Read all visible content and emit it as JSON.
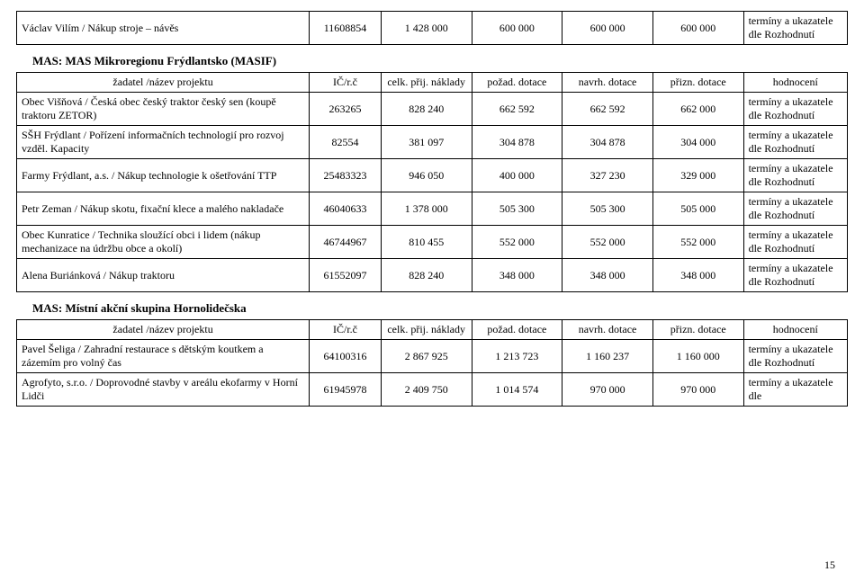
{
  "columns": {
    "ic": "IČ/r.č",
    "celk": "celk. přij. náklady",
    "pozad": "požad. dotace",
    "navrh": "navrh. dotace",
    "prizn": "přizn. dotace",
    "hodn": "hodnocení",
    "zadatel": "žadatel /název projektu"
  },
  "ukaz_full": "termíny a ukazatele dle Rozhodnutí",
  "ukaz_short": "termíny a ukazatele dle",
  "top_row": {
    "name": "Václav Vilím  / Nákup stroje – návěs",
    "ic": "11608854",
    "c1": "1 428 000",
    "c2": "600 000",
    "c3": "600 000",
    "c4": "600 000"
  },
  "section1": {
    "title": "MAS: MAS Mikroregionu Frýdlantsko (MASIF)",
    "rows": [
      {
        "name": "Obec Višňová / Česká obec český traktor český sen (koupě traktoru ZETOR)",
        "ic": "263265",
        "c1": "828 240",
        "c2": "662 592",
        "c3": "662 592",
        "c4": "662 000"
      },
      {
        "name": "SŠH Frýdlant / Pořízení informačních technologií pro rozvoj vzděl. Kapacity",
        "ic": "82554",
        "c1": "381 097",
        "c2": "304 878",
        "c3": "304 878",
        "c4": "304 000"
      },
      {
        "name": "Farmy Frýdlant, a.s. / Nákup technologie k ošetřování TTP",
        "ic": "25483323",
        "c1": "946 050",
        "c2": "400 000",
        "c3": "327 230",
        "c4": "329 000"
      },
      {
        "name": "Petr Zeman / Nákup skotu, fixační klece a malého nakladače",
        "ic": "46040633",
        "c1": "1 378 000",
        "c2": "505 300",
        "c3": "505 300",
        "c4": "505 000"
      },
      {
        "name": "Obec Kunratice / Technika sloužící obci i lidem (nákup mechanizace na údržbu obce a okolí)",
        "ic": "46744967",
        "c1": "810 455",
        "c2": "552 000",
        "c3": "552 000",
        "c4": "552 000"
      },
      {
        "name": "Alena Buriánková / Nákup traktoru",
        "ic": "61552097",
        "c1": "828 240",
        "c2": "348 000",
        "c3": "348 000",
        "c4": "348 000"
      }
    ]
  },
  "section2": {
    "title": "MAS: Místní akční skupina Hornolidečska",
    "rows": [
      {
        "name": "Pavel Šeliga / Zahradní restaurace s dětským koutkem a zázemím pro volný čas",
        "ic": "64100316",
        "c1": "2 867 925",
        "c2": "1 213 723",
        "c3": "1 160 237",
        "c4": "1 160 000",
        "h": "full"
      },
      {
        "name": "Agrofyto, s.r.o. / Doprovodné stavby v areálu ekofarmy v Horní Lidči",
        "ic": "61945978",
        "c1": "2 409 750",
        "c2": "1 014 574",
        "c3": "970 000",
        "c4": "970 000",
        "h": "short"
      }
    ]
  },
  "page_number": "15"
}
